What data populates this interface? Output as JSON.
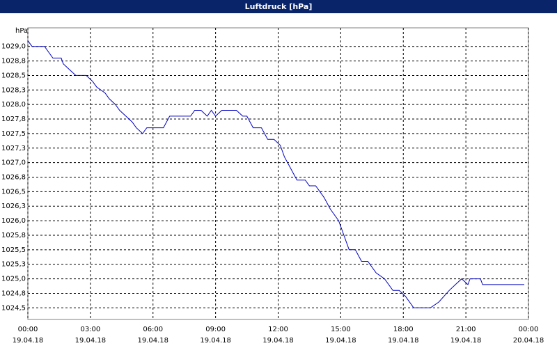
{
  "chart_data": {
    "type": "line",
    "title": "Luftdruck [hPa]",
    "y_unit_label": "hPa",
    "x": [
      0,
      0.2,
      0.8,
      1.2,
      1.6,
      1.7,
      2,
      2.3,
      2.8,
      3.1,
      3.3,
      3.7,
      3.9,
      4.2,
      4.4,
      4.7,
      5,
      5.2,
      5.5,
      5.7,
      5.9,
      6.5,
      6.8,
      7.3,
      7.8,
      8,
      8.3,
      8.6,
      8.8,
      9,
      9.3,
      10,
      10.3,
      10.5,
      10.8,
      11.2,
      11.5,
      11.8,
      12.1,
      12.3,
      12.6,
      12.9,
      13.3,
      13.5,
      13.8,
      14.2,
      14.5,
      14.9,
      15.2,
      15.4,
      15.7,
      16,
      16.3,
      16.7,
      17.1,
      17.5,
      17.8,
      18.1,
      18.5,
      19.3,
      19.7,
      20.2,
      20.5,
      20.8,
      21.1,
      21.2,
      21.7,
      21.8,
      23.8
    ],
    "series": [
      {
        "name": "Luftdruck",
        "color": "#0000c0",
        "values": [
          1029.1,
          1029.0,
          1029.0,
          1028.8,
          1028.8,
          1028.7,
          1028.6,
          1028.5,
          1028.5,
          1028.4,
          1028.3,
          1028.2,
          1028.1,
          1028.0,
          1027.9,
          1027.8,
          1027.7,
          1027.6,
          1027.5,
          1027.6,
          1027.6,
          1027.6,
          1027.8,
          1027.8,
          1027.8,
          1027.9,
          1027.9,
          1027.8,
          1027.9,
          1027.8,
          1027.9,
          1027.9,
          1027.8,
          1027.8,
          1027.6,
          1027.6,
          1027.4,
          1027.4,
          1027.3,
          1027.1,
          1026.9,
          1026.7,
          1026.7,
          1026.6,
          1026.6,
          1026.4,
          1026.2,
          1026.0,
          1025.7,
          1025.5,
          1025.5,
          1025.3,
          1025.3,
          1025.1,
          1025.0,
          1024.8,
          1024.8,
          1024.7,
          1024.5,
          1024.5,
          1024.6,
          1024.8,
          1024.9,
          1025.0,
          1024.9,
          1025.0,
          1025.0,
          1024.9,
          1024.9
        ]
      }
    ],
    "xlim": [
      0,
      24
    ],
    "xticks": [
      {
        "value": 0,
        "label": "00:00"
      },
      {
        "value": 3,
        "label": "03:00"
      },
      {
        "value": 6,
        "label": "06:00"
      },
      {
        "value": 9,
        "label": "09:00"
      },
      {
        "value": 12,
        "label": "12:00"
      },
      {
        "value": 15,
        "label": "15:00"
      },
      {
        "value": 18,
        "label": "18:00"
      },
      {
        "value": 21,
        "label": "21:00"
      },
      {
        "value": 24,
        "label": "00:00"
      }
    ],
    "xtick_dates": [
      "19.04.18",
      "19.04.18",
      "19.04.18",
      "19.04.18",
      "19.04.18",
      "19.04.18",
      "19.04.18",
      "19.04.18",
      "20.04.18"
    ],
    "ylim": [
      1024.3,
      1029.32
    ],
    "yticks": [
      {
        "value": 1024.5,
        "label": "1024,5"
      },
      {
        "value": 1024.75,
        "label": "1024,8"
      },
      {
        "value": 1025.0,
        "label": "1025,0"
      },
      {
        "value": 1025.25,
        "label": "1025,3"
      },
      {
        "value": 1025.5,
        "label": "1025,5"
      },
      {
        "value": 1025.75,
        "label": "1025,8"
      },
      {
        "value": 1026.0,
        "label": "1026,0"
      },
      {
        "value": 1026.25,
        "label": "1026,3"
      },
      {
        "value": 1026.5,
        "label": "1026,5"
      },
      {
        "value": 1026.75,
        "label": "1026,8"
      },
      {
        "value": 1027.0,
        "label": "1027,0"
      },
      {
        "value": 1027.25,
        "label": "1027,3"
      },
      {
        "value": 1027.5,
        "label": "1027,5"
      },
      {
        "value": 1027.75,
        "label": "1027,8"
      },
      {
        "value": 1028.0,
        "label": "1028,0"
      },
      {
        "value": 1028.25,
        "label": "1028,3"
      },
      {
        "value": 1028.5,
        "label": "1028,5"
      },
      {
        "value": 1028.75,
        "label": "1028,8"
      },
      {
        "value": 1029.0,
        "label": "1029,0"
      }
    ],
    "grid": true
  }
}
